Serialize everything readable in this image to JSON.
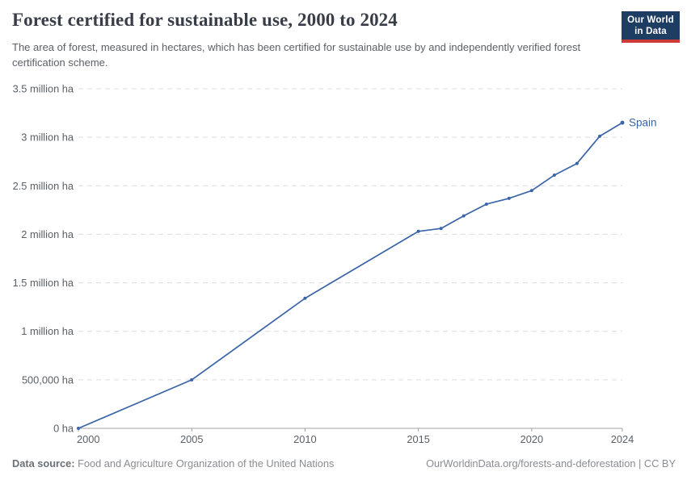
{
  "header": {
    "title": "Forest certified for sustainable use, 2000 to 2024",
    "subtitle": "The area of forest, measured in hectares, which has been certified for sustainable use by and independently verified forest certification scheme.",
    "logo": {
      "line1": "Our World",
      "line2": "in Data",
      "bg_color": "#1d3d63",
      "bar_color": "#cc3b36"
    }
  },
  "chart_data": {
    "type": "line",
    "title": "Forest certified for sustainable use, 2000 to 2024",
    "xlabel": "",
    "ylabel": "",
    "xlim": [
      2000,
      2024
    ],
    "ylim": [
      0,
      3500000
    ],
    "grid": "horizontal-dashed",
    "legend_position": "end-of-line-label",
    "x_ticks": [
      2000,
      2005,
      2010,
      2015,
      2020,
      2024
    ],
    "y_ticks": [
      {
        "value": 0,
        "label": "0 ha"
      },
      {
        "value": 500000,
        "label": "500,000 ha"
      },
      {
        "value": 1000000,
        "label": "1 million ha"
      },
      {
        "value": 1500000,
        "label": "1.5 million ha"
      },
      {
        "value": 2000000,
        "label": "2 million ha"
      },
      {
        "value": 2500000,
        "label": "2.5 million ha"
      },
      {
        "value": 3000000,
        "label": "3 million ha"
      },
      {
        "value": 3500000,
        "label": "3.5 million ha"
      }
    ],
    "series": [
      {
        "name": "Spain",
        "color": "#3a64a8",
        "points": [
          [
            2000,
            0
          ],
          [
            2005,
            500000
          ],
          [
            2010,
            1340000
          ],
          [
            2015,
            2030000
          ],
          [
            2016,
            2060000
          ],
          [
            2017,
            2190000
          ],
          [
            2018,
            2310000
          ],
          [
            2019,
            2370000
          ],
          [
            2020,
            2450000
          ],
          [
            2021,
            2610000
          ],
          [
            2022,
            2730000
          ],
          [
            2023,
            3010000
          ],
          [
            2024,
            3150000
          ]
        ]
      }
    ]
  },
  "footer": {
    "data_source_label": "Data source:",
    "data_source_value": " Food and Agriculture Organization of the United Nations",
    "attribution": "OurWorldinData.org/forests-and-deforestation | CC BY"
  },
  "colors": {
    "line_blue": "#3a64a8",
    "brand_navy": "#1d3d63",
    "brand_red": "#cc3b36"
  }
}
